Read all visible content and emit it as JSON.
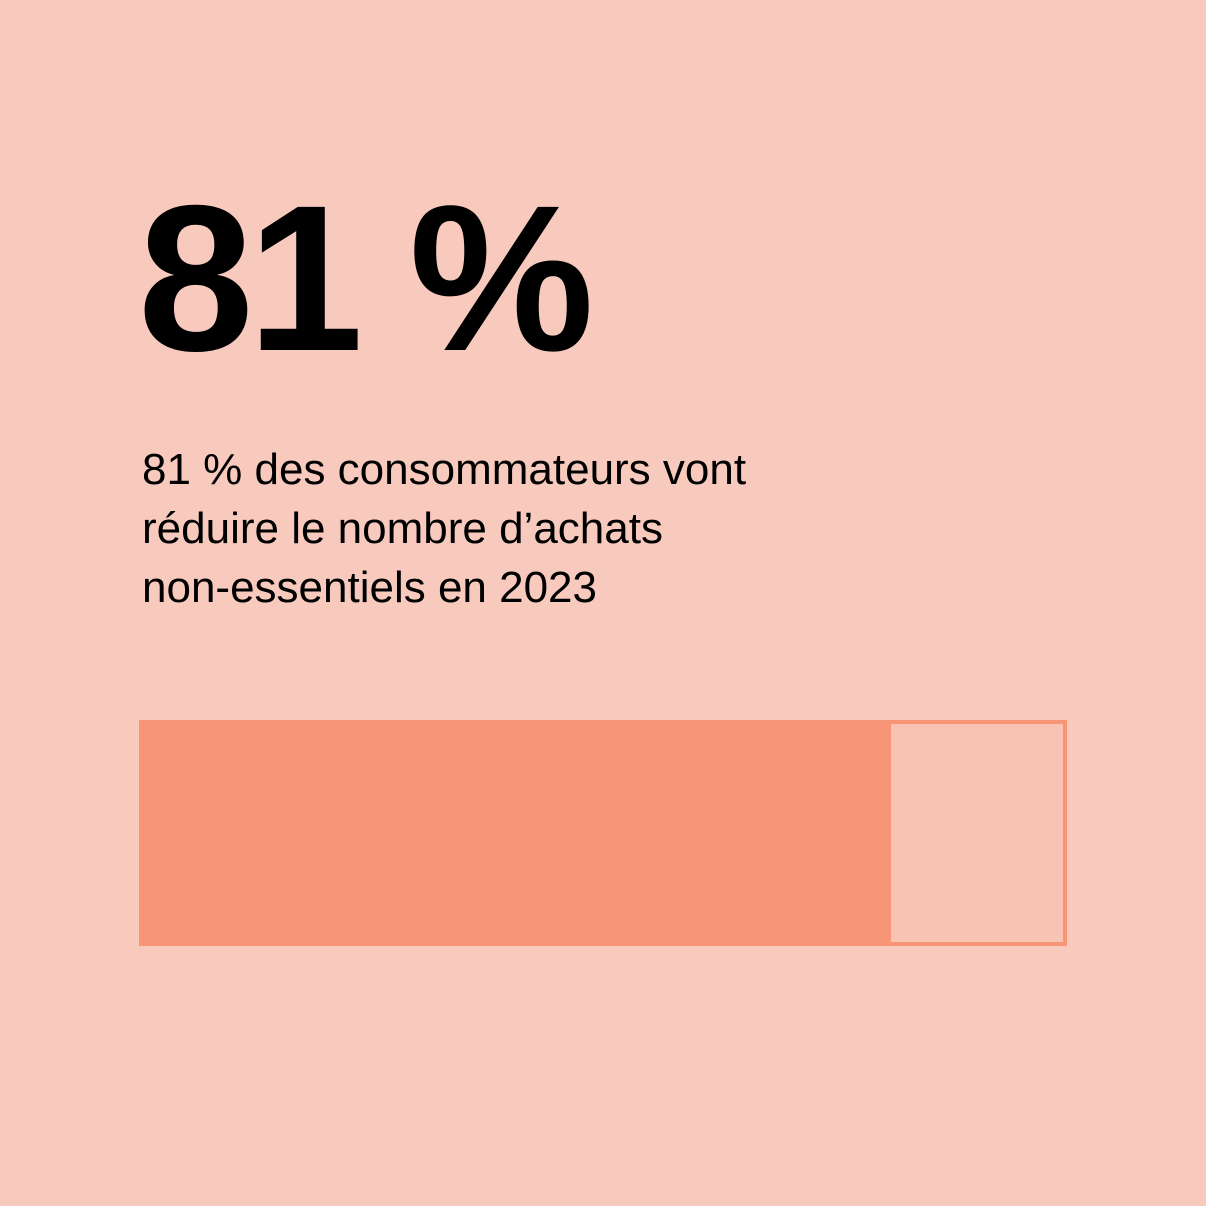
{
  "stat": {
    "value": "81 %",
    "caption_lines": [
      "81 % des consommateurs vont",
      "réduire le nombre d’achats",
      "non-essentiels en 2023"
    ]
  },
  "colors": {
    "background": "#f8cabd",
    "bar_fill": "#f79676",
    "bar_remainder": "#f8c3b2",
    "text": "#000000"
  },
  "chart_data": {
    "type": "bar",
    "values": [
      81
    ],
    "ylim": [
      0,
      100
    ]
  }
}
